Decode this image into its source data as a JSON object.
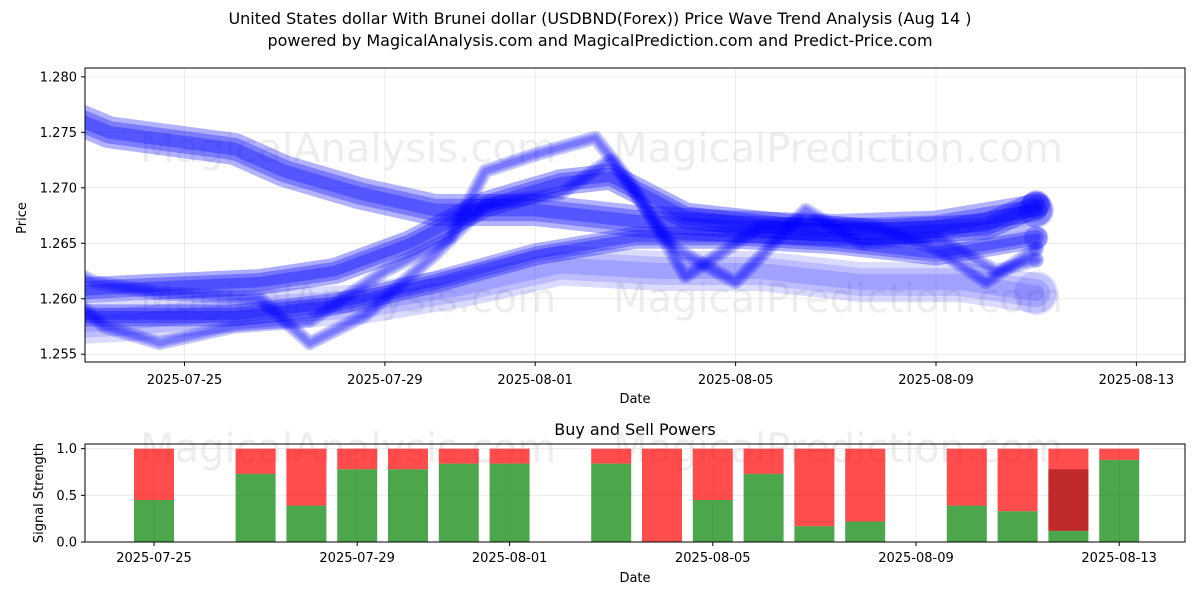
{
  "title": {
    "line1": "United States dollar With Brunei dollar (USDBND(Forex)) Price Wave Trend Analysis (Aug 14 )",
    "line2": "powered by MagicalAnalysis.com and MagicalPrediction.com and Predict-Price.com"
  },
  "watermarks": [
    "MagicalAnalysis.com",
    "MagicalPrediction.com"
  ],
  "colors": {
    "wave": "#0000ff",
    "buy": "#008000",
    "sell": "#ff0000",
    "mixed": "#b22222"
  },
  "chart_data": [
    {
      "type": "line",
      "name": "price-wave-chart",
      "xlabel": "Date",
      "ylabel": "Price",
      "ylim": [
        1.2543,
        1.2808
      ],
      "xlim": [
        "2025-07-22.5",
        "2025-08-13.5"
      ],
      "x_ticks": [
        "2025-07-25",
        "2025-07-29",
        "2025-08-01",
        "2025-08-05",
        "2025-08-09",
        "2025-08-13"
      ],
      "y_ticks": [
        "1.255",
        "1.260",
        "1.265",
        "1.270",
        "1.275",
        "1.280"
      ],
      "grid": true,
      "series": [
        {
          "name": "upper-wave",
          "x": [
            -0.1,
            1.5,
            4.0,
            5.0,
            6.5,
            8.0,
            10.0,
            12.0,
            14.0,
            16.0,
            18.0,
            20.0
          ],
          "values": [
            1.278,
            1.275,
            1.2735,
            1.2715,
            1.2695,
            1.268,
            1.268,
            1.267,
            1.2665,
            1.2662,
            1.2665,
            1.268
          ]
        },
        {
          "name": "main-wave",
          "x": [
            0.0,
            2.0,
            4.5,
            6.0,
            7.5,
            9.0,
            10.5,
            11.5,
            13.0,
            15.0,
            17.0,
            19.0,
            20.0
          ],
          "values": [
            1.2605,
            1.261,
            1.2615,
            1.2625,
            1.265,
            1.2685,
            1.2705,
            1.271,
            1.2675,
            1.2665,
            1.266,
            1.2665,
            1.2685
          ]
        },
        {
          "name": "lower-wave",
          "x": [
            0.0,
            2.0,
            4.0,
            6.0,
            8.0,
            10.0,
            12.0,
            14.0,
            16.0,
            18.0,
            20.0
          ],
          "values": [
            1.2585,
            1.2585,
            1.2585,
            1.2595,
            1.2615,
            1.264,
            1.2655,
            1.2655,
            1.265,
            1.264,
            1.2655
          ]
        },
        {
          "name": "zigzag-wave-1",
          "x": [
            0.4,
            1.4,
            2.5,
            4.0,
            5.5,
            7.0,
            8.3,
            9.0,
            10.0,
            11.2,
            11.9,
            13.0,
            14.5,
            15.6,
            16.8,
            18.0,
            19.0,
            20.0
          ],
          "values": [
            1.2615,
            1.2575,
            1.256,
            1.2575,
            1.258,
            1.2625,
            1.2655,
            1.2715,
            1.273,
            1.2745,
            1.2705,
            1.262,
            1.2665,
            1.267,
            1.2665,
            1.2645,
            1.2615,
            1.2645
          ]
        },
        {
          "name": "zigzag-wave-2",
          "x": [
            0.3,
            1.2,
            2.5,
            4.5,
            5.5,
            6.6,
            8.0,
            9.0,
            10.5,
            11.5,
            12.8,
            14.0,
            15.4,
            16.5,
            18.0,
            19.2,
            20.0
          ],
          "values": [
            1.2635,
            1.2615,
            1.2605,
            1.26,
            1.256,
            1.2585,
            1.264,
            1.2685,
            1.2695,
            1.2725,
            1.2645,
            1.2615,
            1.268,
            1.265,
            1.2655,
            1.2625,
            1.2635
          ]
        },
        {
          "name": "wide-band",
          "x": [
            0.0,
            2.0,
            4.5,
            6.5,
            8.5,
            10.5,
            12.5,
            14.5,
            16.5,
            18.5,
            20.0
          ],
          "values": [
            1.2575,
            1.258,
            1.259,
            1.2595,
            1.261,
            1.263,
            1.2625,
            1.2625,
            1.2615,
            1.2615,
            1.2605
          ]
        }
      ]
    },
    {
      "type": "bar",
      "name": "buy-sell-powers-chart",
      "title": "Buy and Sell Powers",
      "xlabel": "Date",
      "ylabel": "Signal Strength",
      "ylim": [
        0,
        1.05
      ],
      "y_ticks": [
        "0.0",
        "0.5",
        "1.0"
      ],
      "x_ticks": [
        "2025-07-25",
        "2025-07-29",
        "2025-08-01",
        "2025-08-05",
        "2025-08-09",
        "2025-08-13"
      ],
      "bar_dates": [
        "2025-07-25",
        "2025-07-27",
        "2025-07-28",
        "2025-07-29",
        "2025-07-30",
        "2025-07-31",
        "2025-08-01",
        "2025-08-03",
        "2025-08-04",
        "2025-08-05",
        "2025-08-06",
        "2025-08-07",
        "2025-08-08",
        "2025-08-10",
        "2025-08-11",
        "2025-08-12",
        "2025-08-13"
      ],
      "series": [
        {
          "name": "buy",
          "values": [
            0.45,
            0.73,
            0.39,
            0.78,
            0.78,
            0.84,
            0.84,
            0.84,
            0.0,
            0.45,
            0.73,
            0.17,
            0.22,
            0.39,
            0.33,
            0.12,
            0.88
          ]
        },
        {
          "name": "sell",
          "values": [
            0.55,
            0.27,
            0.61,
            0.22,
            0.22,
            0.16,
            0.16,
            0.16,
            1.0,
            0.55,
            0.27,
            0.83,
            0.78,
            0.61,
            0.67,
            0.88,
            0.12
          ]
        },
        {
          "name": "mixed",
          "values": [
            0,
            0,
            0,
            0,
            0,
            0,
            0,
            0,
            0,
            0,
            0,
            0,
            0,
            0,
            0,
            0.66,
            0
          ]
        }
      ]
    }
  ]
}
